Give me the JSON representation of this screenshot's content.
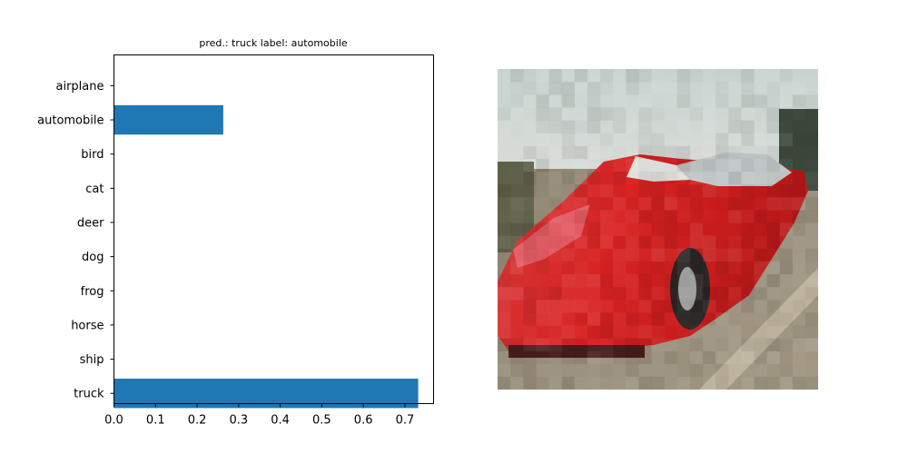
{
  "chart_data": {
    "type": "bar",
    "orientation": "horizontal",
    "title": "pred.: truck   label: automobile",
    "categories": [
      "airplane",
      "automobile",
      "bird",
      "cat",
      "deer",
      "dog",
      "frog",
      "horse",
      "ship",
      "truck"
    ],
    "values": [
      0.0,
      0.263,
      0.0,
      0.0,
      0.0,
      0.0,
      0.0,
      0.0,
      0.0,
      0.732
    ],
    "xlim": [
      0.0,
      0.769
    ],
    "xticks": [
      "0.0",
      "0.1",
      "0.2",
      "0.3",
      "0.4",
      "0.5",
      "0.6",
      "0.7"
    ],
    "xlabel": "",
    "ylabel": "",
    "grid": false,
    "bar_color": "#1f77b4"
  },
  "image_panel": {
    "subject": "pixelated red car (automobile)",
    "rows": 25,
    "cols": 25
  }
}
